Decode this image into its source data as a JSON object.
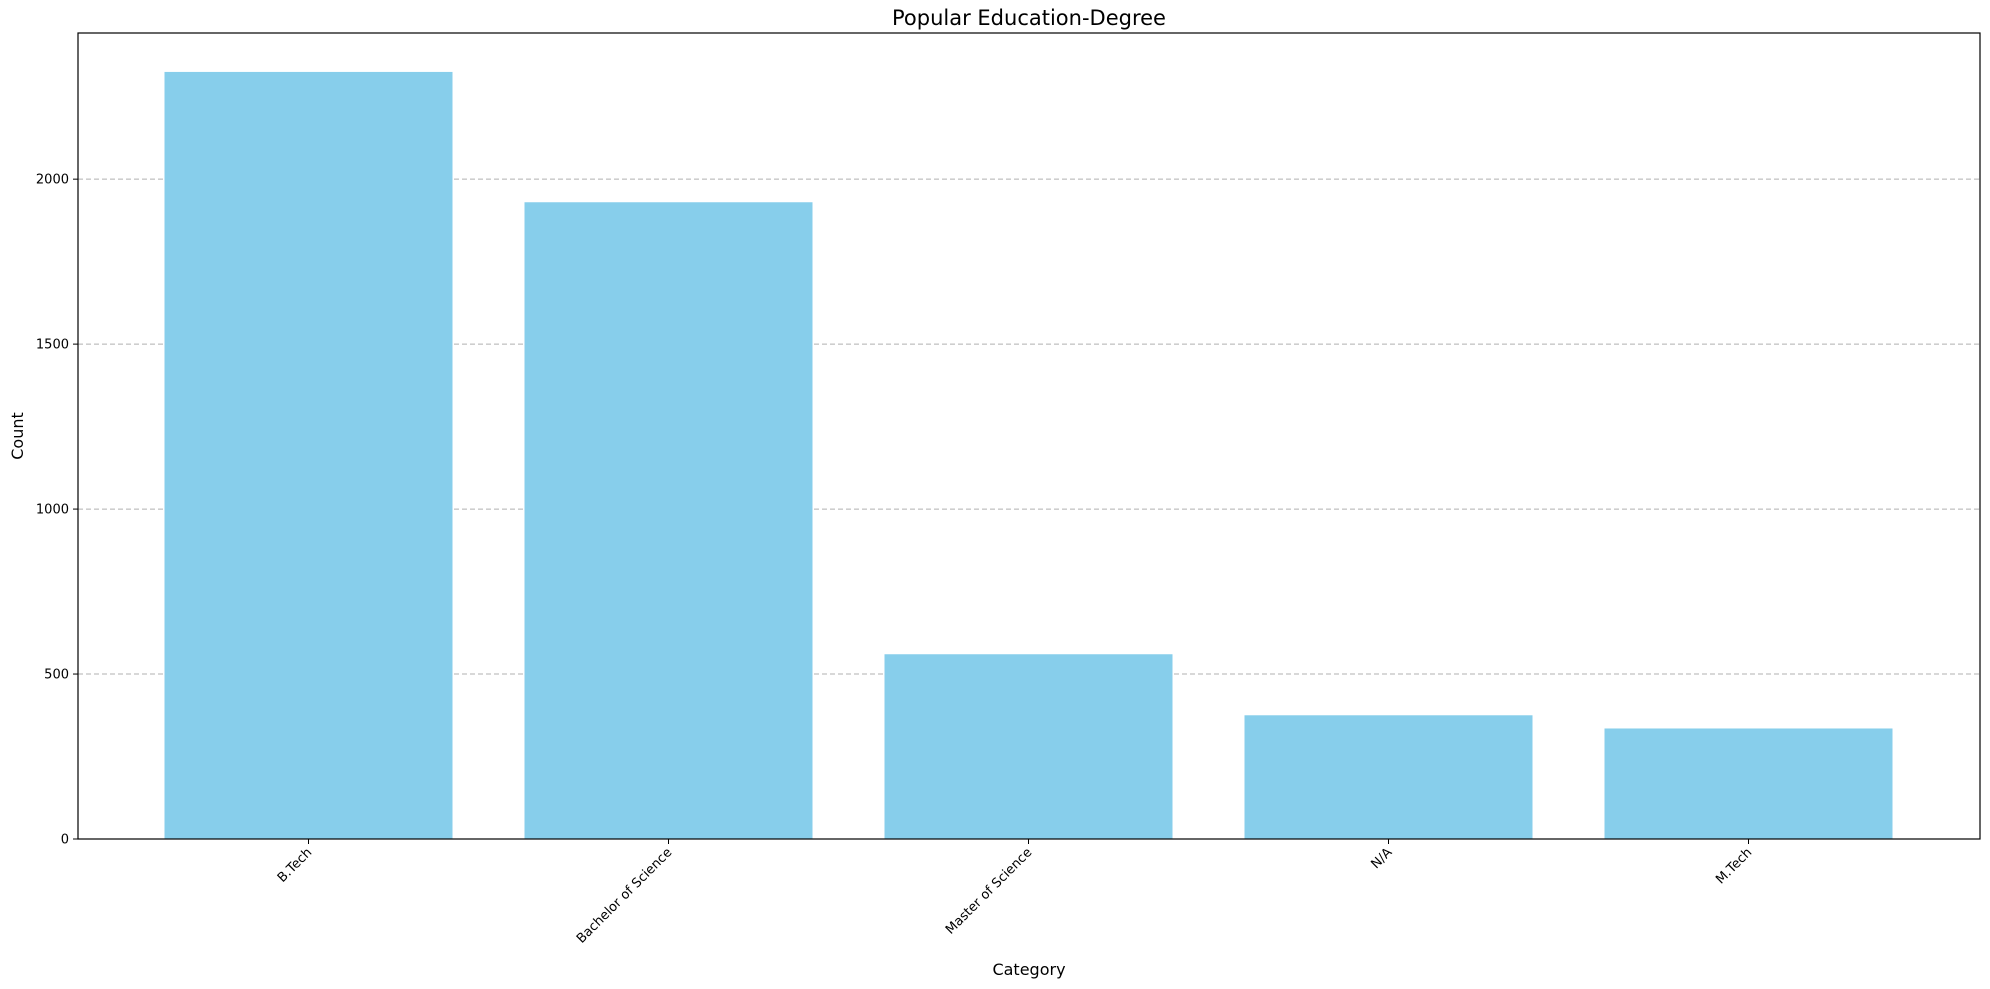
{
  "chart_data": {
    "type": "bar",
    "title": "Popular Education-Degree",
    "xlabel": "Category",
    "ylabel": "Count",
    "categories": [
      "B.Tech",
      "Bachelor of Science",
      "Master of Science",
      "N/A",
      "M.Tech"
    ],
    "values": [
      2325,
      1930,
      560,
      375,
      335
    ],
    "ylim": [
      0,
      2443
    ],
    "yticks": [
      0,
      500,
      1000,
      1500,
      2000
    ],
    "grid": "y-dashed",
    "bar_color": "#87ceeb"
  }
}
